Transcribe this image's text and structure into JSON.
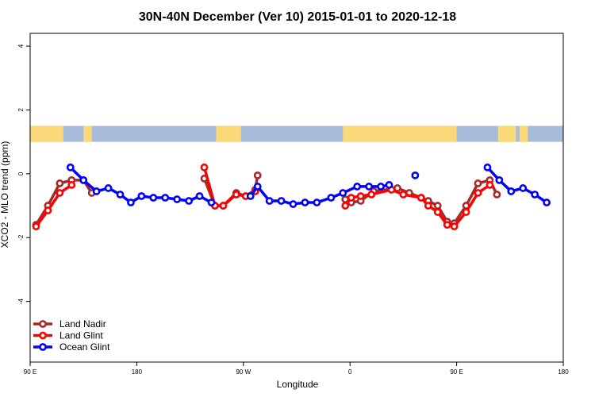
{
  "chart_data": {
    "type": "line",
    "title": "30N-40N December (Ver 10)   2015-01-01 to 2020-12-18",
    "xlabel": "Longitude",
    "ylabel": "XCO2 - MLO trend (ppm)",
    "x_ticks": [
      {
        "value": 90,
        "label": "90 E"
      },
      {
        "value": 180,
        "label": "180"
      },
      {
        "value": 270,
        "label": "90 W"
      },
      {
        "value": 360,
        "label": "0"
      },
      {
        "value": 450,
        "label": "90 E"
      },
      {
        "value": 540,
        "label": "180"
      }
    ],
    "y_ticks": [
      {
        "value": 4,
        "label": "4"
      },
      {
        "value": 2,
        "label": "2"
      },
      {
        "value": 0,
        "label": "0"
      },
      {
        "value": -2,
        "label": "-2"
      },
      {
        "value": -4,
        "label": "-4"
      }
    ],
    "xlim": [
      90,
      540
    ],
    "ylim": [
      -5.9,
      4.4
    ],
    "map_band": {
      "y_top": 1.5,
      "y_bottom": 1.0,
      "ocean_color": "#a8bcd9",
      "land_color": "#fbd978"
    },
    "legend_position": "bottom-left",
    "series": [
      {
        "name": "Land Nadir",
        "color": "#a52a2a",
        "segments": [
          [
            [
              95,
              -1.6
            ],
            [
              105,
              -1.0
            ],
            [
              115,
              -0.3
            ],
            [
              125,
              -0.2
            ],
            [
              135,
              -0.2
            ],
            [
              142,
              -0.6
            ]
          ],
          [
            [
              237,
              -0.15
            ],
            [
              246,
              -1.0
            ],
            [
              253,
              -1.0
            ],
            [
              264,
              -0.6
            ],
            [
              272,
              -0.7
            ],
            [
              280,
              -0.5
            ],
            [
              282,
              -0.05
            ]
          ],
          [
            [
              356,
              -0.8
            ],
            [
              361,
              -0.9
            ],
            [
              369,
              -0.85
            ],
            [
              380,
              -0.55
            ],
            [
              400,
              -0.45
            ],
            [
              410,
              -0.6
            ],
            [
              420,
              -0.75
            ],
            [
              426,
              -0.85
            ],
            [
              434,
              -1.0
            ],
            [
              442,
              -1.5
            ],
            [
              448,
              -1.55
            ],
            [
              458,
              -1.0
            ],
            [
              468,
              -0.3
            ],
            [
              478,
              -0.2
            ],
            [
              484,
              -0.65
            ]
          ]
        ]
      },
      {
        "name": "Land Glint",
        "color": "#ff0000",
        "segments": [
          [
            [
              95,
              -1.65
            ],
            [
              105,
              -1.15
            ],
            [
              115,
              -0.6
            ],
            [
              125,
              -0.35
            ]
          ],
          [
            [
              237,
              0.2
            ],
            [
              246,
              -1.0
            ],
            [
              253,
              -1.0
            ],
            [
              264,
              -0.65
            ],
            [
              272,
              -0.7
            ],
            [
              280,
              -0.55
            ]
          ],
          [
            [
              356,
              -1.0
            ],
            [
              361,
              -0.75
            ],
            [
              369,
              -0.7
            ],
            [
              378,
              -0.65
            ],
            [
              395,
              -0.5
            ],
            [
              405,
              -0.65
            ],
            [
              420,
              -0.75
            ],
            [
              426,
              -1.0
            ],
            [
              434,
              -1.2
            ],
            [
              442,
              -1.6
            ],
            [
              448,
              -1.65
            ],
            [
              458,
              -1.2
            ],
            [
              468,
              -0.6
            ],
            [
              478,
              -0.35
            ]
          ]
        ]
      },
      {
        "name": "Ocean Glint",
        "color": "#0000ff",
        "segments": [
          [
            [
              124,
              0.2
            ],
            [
              135,
              -0.2
            ],
            [
              146,
              -0.55
            ],
            [
              156,
              -0.45
            ],
            [
              166,
              -0.65
            ],
            [
              175,
              -0.9
            ],
            [
              184,
              -0.7
            ],
            [
              194,
              -0.75
            ],
            [
              204,
              -0.75
            ],
            [
              214,
              -0.8
            ],
            [
              224,
              -0.85
            ],
            [
              233,
              -0.7
            ],
            [
              243,
              -0.9
            ]
          ],
          [
            [
              276,
              -0.7
            ],
            [
              282,
              -0.4
            ],
            [
              292,
              -0.85
            ],
            [
              302,
              -0.85
            ],
            [
              312,
              -0.95
            ],
            [
              322,
              -0.9
            ],
            [
              332,
              -0.9
            ],
            [
              344,
              -0.75
            ],
            [
              354,
              -0.6
            ],
            [
              366,
              -0.4
            ],
            [
              376,
              -0.4
            ],
            [
              386,
              -0.4
            ],
            [
              393,
              -0.35
            ]
          ],
          [
            [
              415,
              -0.05
            ]
          ],
          [
            [
              476,
              0.2
            ],
            [
              486,
              -0.2
            ],
            [
              496,
              -0.55
            ],
            [
              506,
              -0.45
            ],
            [
              516,
              -0.65
            ],
            [
              526,
              -0.9
            ]
          ]
        ]
      }
    ]
  }
}
